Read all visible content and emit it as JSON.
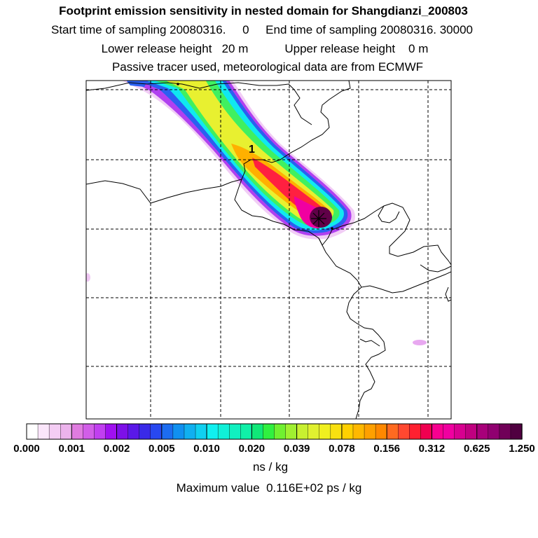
{
  "titles": {
    "line1": "Footprint emission sensitivity in nested domain for Shangdianzi_200803",
    "line2": "Start time of sampling 20080316.     0     End time of sampling 20080316. 30000",
    "line3": "Lower release height   20 m           Upper release height    0 m",
    "line4": "Passive tracer used, meteorological data are from ECMWF"
  },
  "map": {
    "plume_number_label": "1",
    "station_marker_icon": "star-asterisk-icon",
    "coastline_color": "#000000",
    "grid_style": "dashed"
  },
  "colorbar": {
    "tick_labels": [
      "0.000",
      "0.001",
      "0.002",
      "0.005",
      "0.010",
      "0.020",
      "0.039",
      "0.078",
      "0.156",
      "0.312",
      "0.625",
      "1.250"
    ],
    "colors": [
      "#ffffff",
      "#fbe6fb",
      "#f4cdf4",
      "#ecb3ec",
      "#e07ce0",
      "#d25ee8",
      "#c13ff0",
      "#a010f0",
      "#7d10e8",
      "#5a18e8",
      "#3a2ae8",
      "#2848f0",
      "#1c6cf0",
      "#1090f0",
      "#10b0f0",
      "#10d0f0",
      "#10f0f0",
      "#10f0d8",
      "#10f0c0",
      "#10f0a8",
      "#10e878",
      "#30f040",
      "#70f030",
      "#a0f030",
      "#c8f030",
      "#e0f030",
      "#f0f020",
      "#f8e010",
      "#ffd000",
      "#ffb800",
      "#ffa000",
      "#ff8800",
      "#ff6a20",
      "#ff4830",
      "#ff2030",
      "#f00050",
      "#f80090",
      "#f000a0",
      "#d80090",
      "#c00080",
      "#a8007a",
      "#900070",
      "#700058",
      "#500040"
    ]
  },
  "units": "ns / kg",
  "max_value": "Maximum value  0.116E+02 ps / kg"
}
